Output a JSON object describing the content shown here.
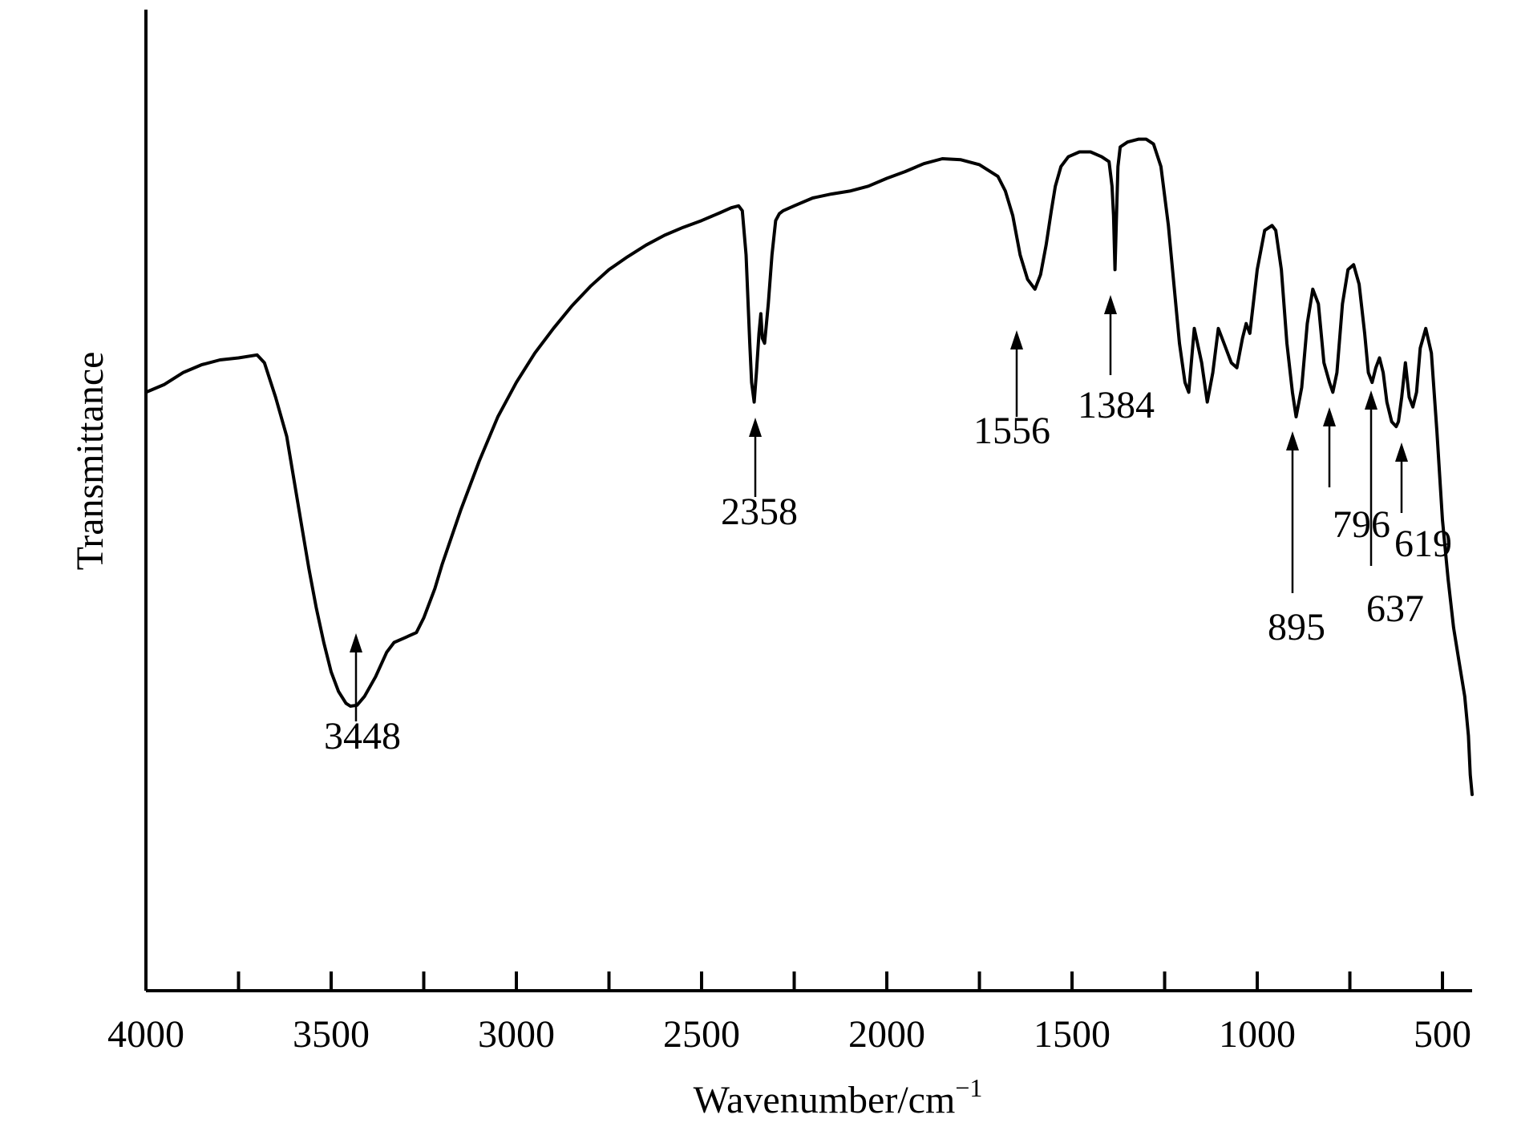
{
  "chart_data": {
    "type": "line",
    "xlabel": "Wavenumber/cm",
    "xlabel_superscript": "−1",
    "ylabel": "Transmittance",
    "xlim": [
      4000,
      420
    ],
    "ylim": [
      0,
      100
    ],
    "x_ticks": [
      4000,
      3500,
      3000,
      2500,
      2000,
      1500,
      1000,
      500
    ],
    "x_tick_labels": [
      "4000",
      "3500",
      "3000",
      "2500",
      "2000",
      "1500",
      "1000",
      "500"
    ],
    "x_minor_ticks": [
      3750,
      3250,
      2750,
      2250,
      1750,
      1250,
      750
    ],
    "y_axis_ticks": false,
    "line_color": "#000000",
    "series": [
      {
        "x": [
          4000,
          3950,
          3900,
          3850,
          3800,
          3750,
          3700,
          3680,
          3650,
          3620,
          3600,
          3580,
          3560,
          3540,
          3520,
          3500,
          3480,
          3460,
          3448,
          3430,
          3410,
          3380,
          3350,
          3330,
          3300,
          3270,
          3250,
          3220,
          3200,
          3150,
          3100,
          3050,
          3000,
          2950,
          2900,
          2850,
          2800,
          2750,
          2700,
          2650,
          2600,
          2550,
          2500,
          2450,
          2420,
          2400,
          2390,
          2380,
          2370,
          2365,
          2358,
          2352,
          2345,
          2340,
          2336,
          2330,
          2320,
          2310,
          2300,
          2290,
          2280,
          2250,
          2200,
          2150,
          2100,
          2050,
          2000,
          1950,
          1900,
          1850,
          1800,
          1750,
          1700,
          1680,
          1660,
          1640,
          1620,
          1600,
          1585,
          1570,
          1556,
          1545,
          1530,
          1510,
          1480,
          1450,
          1420,
          1400,
          1392,
          1388,
          1384,
          1380,
          1376,
          1370,
          1350,
          1320,
          1300,
          1280,
          1260,
          1240,
          1220,
          1210,
          1195,
          1185,
          1170,
          1150,
          1135,
          1120,
          1105,
          1090,
          1070,
          1055,
          1040,
          1030,
          1020,
          1000,
          980,
          960,
          950,
          935,
          920,
          905,
          895,
          880,
          865,
          850,
          835,
          820,
          805,
          796,
          785,
          770,
          755,
          740,
          725,
          710,
          700,
          690,
          680,
          670,
          660,
          650,
          637,
          625,
          619,
          610,
          600,
          590,
          580,
          570,
          560,
          545,
          530,
          515,
          500,
          485,
          470,
          455,
          440,
          430,
          425,
          420
        ],
        "y": [
          61.0,
          61.8,
          63.0,
          63.8,
          64.3,
          64.5,
          64.8,
          64.0,
          60.5,
          56.5,
          52.0,
          47.5,
          43.0,
          39.0,
          35.5,
          32.5,
          30.5,
          29.3,
          29.0,
          29.1,
          30.0,
          32.0,
          34.5,
          35.5,
          36.0,
          36.5,
          38.0,
          41.0,
          43.5,
          49.0,
          54.0,
          58.5,
          62.0,
          65.0,
          67.5,
          69.8,
          71.8,
          73.5,
          74.8,
          76.0,
          77.0,
          77.8,
          78.5,
          79.3,
          79.8,
          80.0,
          79.5,
          75.0,
          66.0,
          62.0,
          60.0,
          63.0,
          67.0,
          69.0,
          66.5,
          66.0,
          70.0,
          75.0,
          78.5,
          79.2,
          79.5,
          80.0,
          80.8,
          81.2,
          81.5,
          82.0,
          82.8,
          83.5,
          84.3,
          84.8,
          84.7,
          84.2,
          83.0,
          81.5,
          79.0,
          75.0,
          72.5,
          71.5,
          73.0,
          76.0,
          79.5,
          82.0,
          84.0,
          85.0,
          85.5,
          85.5,
          85.0,
          84.5,
          82.0,
          79.0,
          73.5,
          79.0,
          84.0,
          86.0,
          86.5,
          86.8,
          86.8,
          86.3,
          84.0,
          78.0,
          70.0,
          66.0,
          62.0,
          61.0,
          67.5,
          64.0,
          60.0,
          63.0,
          67.5,
          66.0,
          64.0,
          63.5,
          66.5,
          68.0,
          67.0,
          73.5,
          77.5,
          78.0,
          77.5,
          73.5,
          66.0,
          61.0,
          58.5,
          61.5,
          68.0,
          71.5,
          70.0,
          64.0,
          62.0,
          61.0,
          63.0,
          70.0,
          73.5,
          74.0,
          72.0,
          67.0,
          63.0,
          62.0,
          63.5,
          64.5,
          63.0,
          60.0,
          58.0,
          57.5,
          58.0,
          60.5,
          64.0,
          60.5,
          59.5,
          61.0,
          65.5,
          67.5,
          65.0,
          57.0,
          48.0,
          42.0,
          37.0,
          33.5,
          30.0,
          26.0,
          22.0,
          20.0
        ]
      }
    ],
    "annotations": [
      {
        "label": "3448",
        "x": 3448
      },
      {
        "label": "2358",
        "x": 2358
      },
      {
        "label": "1556",
        "x": 1556
      },
      {
        "label": "1384",
        "x": 1384
      },
      {
        "label": "895",
        "x": 895
      },
      {
        "label": "796",
        "x": 796
      },
      {
        "label": "637",
        "x": 637
      },
      {
        "label": "619",
        "x": 619
      }
    ]
  }
}
